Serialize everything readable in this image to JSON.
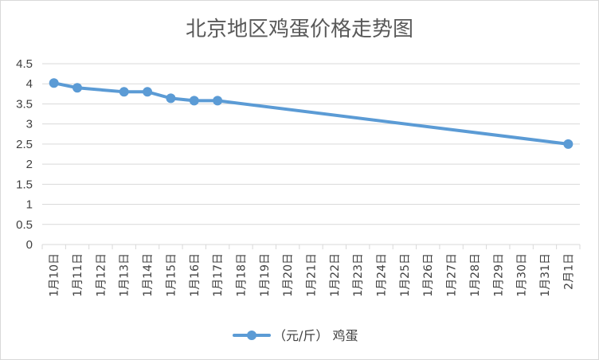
{
  "chart_data": {
    "type": "line",
    "title": "北京地区鸡蛋价格走势图",
    "xlabel": "",
    "ylabel": "",
    "ylim": [
      0,
      4.5
    ],
    "ytick_step": 0.5,
    "y_ticks": [
      "0",
      "0.5",
      "1",
      "1.5",
      "2",
      "2.5",
      "3",
      "3.5",
      "4",
      "4.5"
    ],
    "grid": true,
    "legend_position": "bottom",
    "categories": [
      "1月10日",
      "1月11日",
      "1月12日",
      "1月13日",
      "1月14日",
      "1月15日",
      "1月16日",
      "1月17日",
      "1月18日",
      "1月19日",
      "1月20日",
      "1月21日",
      "1月22日",
      "1月23日",
      "1月24日",
      "1月25日",
      "1月26日",
      "1月27日",
      "1月28日",
      "1月29日",
      "1月30日",
      "1月31日",
      "2月1日"
    ],
    "series": [
      {
        "name": "（元/斤） 鸡蛋",
        "color": "#5b9bd5",
        "points": [
          {
            "category": "1月10日",
            "value": 4.02
          },
          {
            "category": "1月11日",
            "value": 3.9
          },
          {
            "category": "1月13日",
            "value": 3.8
          },
          {
            "category": "1月14日",
            "value": 3.8
          },
          {
            "category": "1月15日",
            "value": 3.64
          },
          {
            "category": "1月16日",
            "value": 3.58
          },
          {
            "category": "1月17日",
            "value": 3.58
          },
          {
            "category": "2月1日",
            "value": 2.5
          }
        ]
      }
    ]
  }
}
